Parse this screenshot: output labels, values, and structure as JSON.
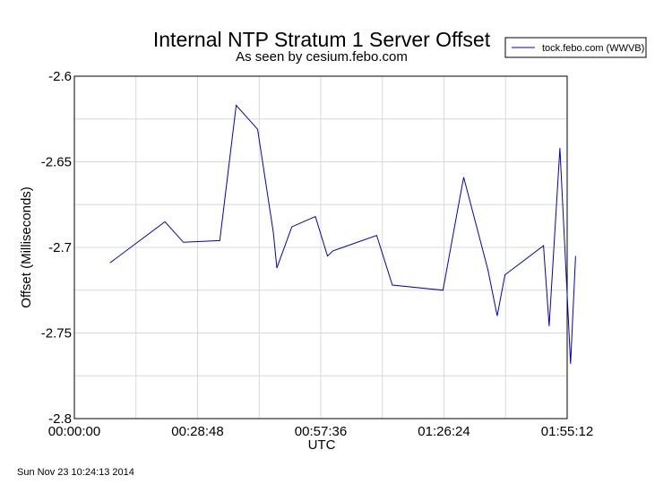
{
  "chart_data": {
    "type": "line",
    "title": "Internal NTP Stratum 1 Server Offset",
    "subtitle": "As seen by cesium.febo.com",
    "xlabel": "UTC",
    "ylabel": "Offset (Milliseconds)",
    "xlim_seconds": [
      0,
      6912
    ],
    "ylim": [
      -2.8,
      -2.6
    ],
    "x_ticks": [
      {
        "value": 0,
        "label": "00:00:00"
      },
      {
        "value": 1728,
        "label": "00:28:48"
      },
      {
        "value": 3456,
        "label": "00:57:36"
      },
      {
        "value": 5184,
        "label": "01:26:24"
      },
      {
        "value": 6912,
        "label": "01:55:12"
      }
    ],
    "y_ticks": [
      {
        "value": -2.6,
        "label": "-2.6"
      },
      {
        "value": -2.65,
        "label": "-2.65"
      },
      {
        "value": -2.7,
        "label": "-2.7"
      },
      {
        "value": -2.75,
        "label": "-2.75"
      },
      {
        "value": -2.8,
        "label": "-2.8"
      }
    ],
    "grid": true,
    "legend_position": "top-right",
    "series": [
      {
        "name": "tock.febo.com (WWVB)",
        "color": "#0000cc",
        "x": [
          500,
          1270,
          1530,
          2040,
          2270,
          2570,
          2790,
          2840,
          3050,
          3380,
          3550,
          3630,
          4240,
          4460,
          5170,
          5350,
          5460,
          5800,
          5930,
          6040,
          6580,
          6660,
          6810,
          6960,
          7030
        ],
        "y": [
          -2.709,
          -2.685,
          -2.697,
          -2.696,
          -2.617,
          -2.631,
          -2.691,
          -2.712,
          -2.688,
          -2.682,
          -2.705,
          -2.702,
          -2.693,
          -2.722,
          -2.725,
          -2.684,
          -2.659,
          -2.713,
          -2.74,
          -2.716,
          -2.699,
          -2.746,
          -2.642,
          -2.768,
          -2.705
        ]
      }
    ]
  },
  "footer": {
    "timestamp": "Sun Nov 23 10:24:13 2014"
  }
}
